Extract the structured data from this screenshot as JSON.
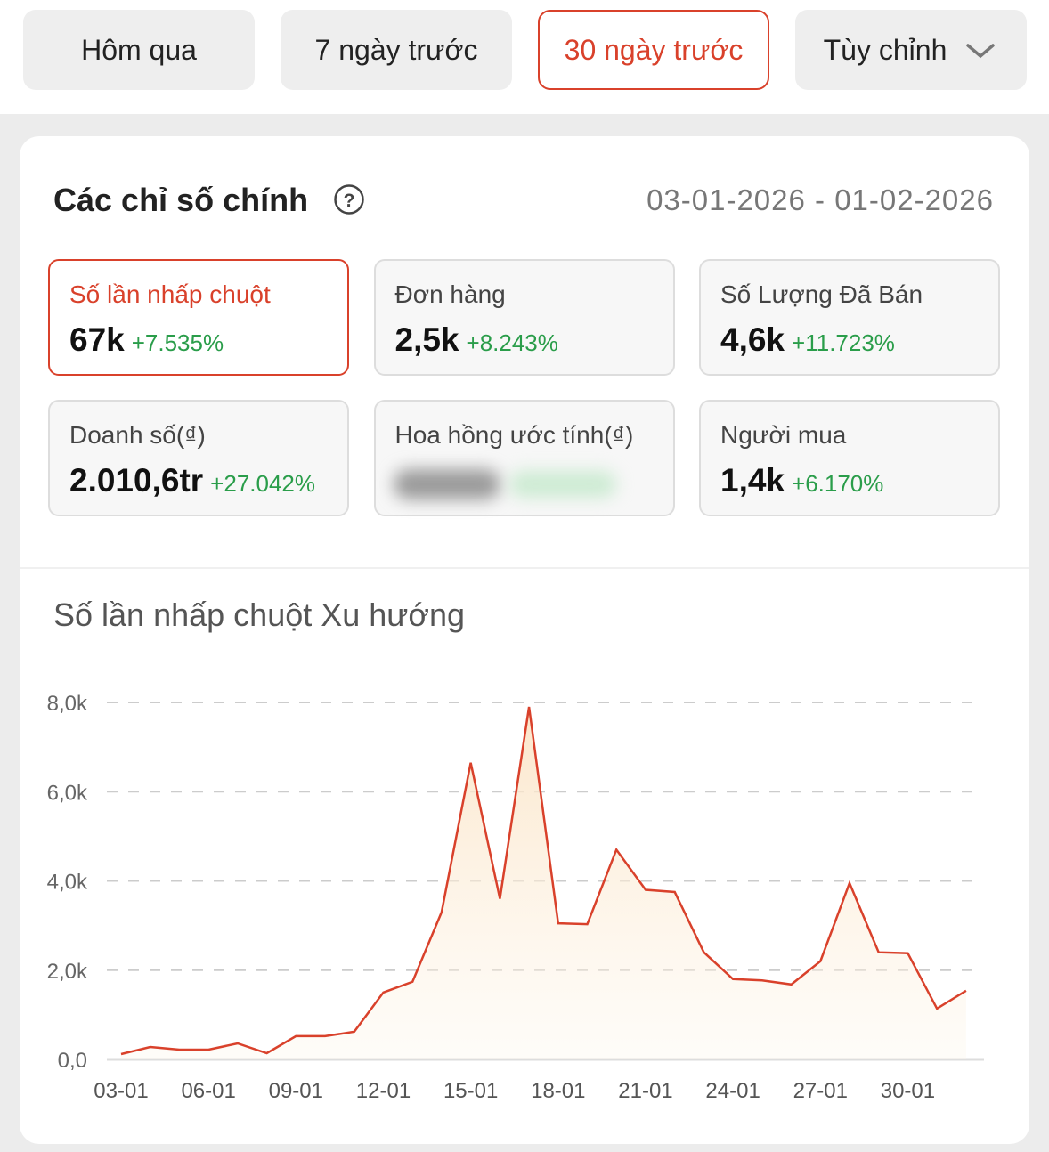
{
  "tabs": [
    "Hôm qua",
    "7 ngày trước",
    "30 ngày trước",
    "Tùy chỉnh"
  ],
  "active_tab": 2,
  "header": {
    "title": "Các chỉ số chính",
    "date_range": "03-01-2026 - 01-02-2026"
  },
  "metrics": [
    {
      "label": "Số lần nhấp chuột",
      "value": "67k",
      "change": "+7.535%"
    },
    {
      "label": "Đơn hàng",
      "value": "2,5k",
      "change": "+8.243%"
    },
    {
      "label": "Số Lượng Đã Bán",
      "value": "4,6k",
      "change": "+11.723%"
    },
    {
      "label": "Doanh số(₫)",
      "value": "2.010,6tr",
      "change": "+27.042%"
    },
    {
      "label": "Hoa hồng ước tính(₫)"
    },
    {
      "label": "Người mua",
      "value": "1,4k",
      "change": "+6.170%"
    }
  ],
  "active_metric": 0,
  "chart_data": {
    "type": "line",
    "title": "Số lần nhấp chuột Xu hướng",
    "categories": [
      "03-01",
      null,
      null,
      "06-01",
      null,
      null,
      "09-01",
      null,
      null,
      "12-01",
      null,
      null,
      "15-01",
      null,
      null,
      "18-01",
      null,
      null,
      "21-01",
      null,
      null,
      "24-01",
      null,
      null,
      "27-01",
      null,
      null,
      "30-01",
      null,
      null
    ],
    "values": [
      120,
      280,
      220,
      220,
      360,
      140,
      520,
      520,
      620,
      1500,
      1740,
      3300,
      6650,
      3600,
      7900,
      3050,
      3030,
      4700,
      3800,
      3750,
      2400,
      1800,
      1770,
      1680,
      2200,
      3950,
      2400,
      2380,
      1140,
      1540
    ],
    "color": "#d9412b",
    "ylim": [
      0,
      8000
    ],
    "yticks": [
      {
        "value": 0,
        "label": "0,0"
      },
      {
        "value": 2000,
        "label": "2,0k"
      },
      {
        "value": 4000,
        "label": "4,0k"
      },
      {
        "value": 6000,
        "label": "6,0k"
      },
      {
        "value": 8000,
        "label": "8,0k"
      }
    ],
    "grid": true
  }
}
